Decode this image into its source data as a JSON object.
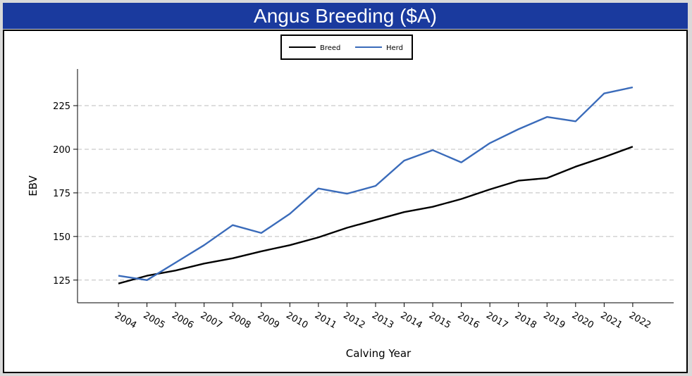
{
  "title": "Angus Breeding ($A)",
  "chart_data": {
    "type": "line",
    "title": "Angus Breeding ($A)",
    "xlabel": "Calving Year",
    "ylabel": "EBV",
    "categories": [
      "2004",
      "2005",
      "2006",
      "2007",
      "2008",
      "2009",
      "2010",
      "2011",
      "2012",
      "2013",
      "2014",
      "2015",
      "2016",
      "2017",
      "2018",
      "2019",
      "2020",
      "2021",
      "2022"
    ],
    "series": [
      {
        "name": "Breed",
        "color": "#000000",
        "values": [
          123,
          127.5,
          130.5,
          134.5,
          137.5,
          141.5,
          145,
          149.5,
          155,
          159.5,
          164,
          167,
          171.5,
          177,
          182,
          183.5,
          190,
          195.5,
          201.5
        ]
      },
      {
        "name": "Herd",
        "color": "#3a6bba",
        "values": [
          127.5,
          125,
          135,
          145,
          156.5,
          152,
          163,
          177.5,
          174.5,
          179,
          193.5,
          199.5,
          192.5,
          203.5,
          211.5,
          218.5,
          216,
          232,
          235.5
        ]
      }
    ],
    "yticks": [
      125,
      150,
      175,
      200,
      225
    ],
    "ylim": [
      112,
      246
    ],
    "grid": "horizontal dashed",
    "legend": "top-center"
  }
}
